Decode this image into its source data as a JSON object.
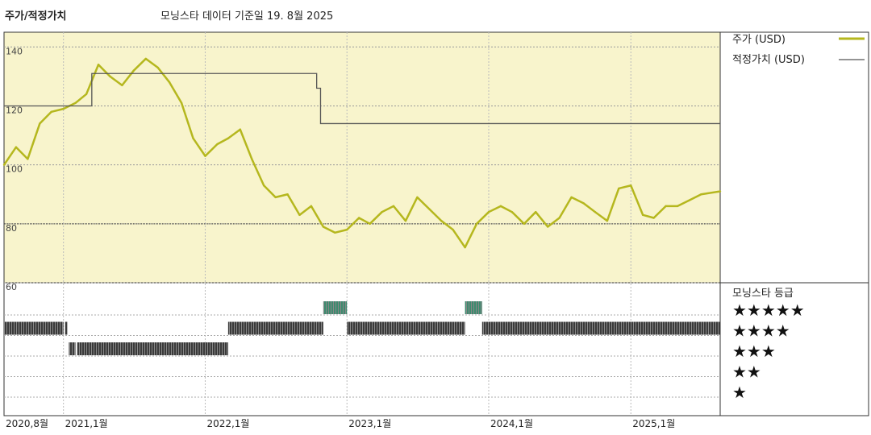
{
  "header": {
    "title": "주가/적정가치",
    "subtitle": "모닝스타 데이터 기준일 19. 8월 2025"
  },
  "colors": {
    "price_line": "#b5b71e",
    "fair_value_line": "#555555",
    "plot_background": "#f8f4cc",
    "rating_bar": "#3a3a3a",
    "rating_bar_highlight": "#3d8a6e"
  },
  "chart_data": {
    "type": "line",
    "y_axis": {
      "ylim": [
        60,
        145
      ],
      "ticks": [
        "140",
        "120",
        "100",
        "80",
        "60"
      ],
      "tick_values": [
        140,
        120,
        100,
        80,
        60
      ]
    },
    "x_axis": {
      "xlim": [
        "2020-08-01",
        "2025-08-19"
      ],
      "ticks": [
        {
          "label": "2020,8월",
          "date": "2020-08-01"
        },
        {
          "label": "2021,1월",
          "date": "2021-01-01"
        },
        {
          "label": "2022,1월",
          "date": "2022-01-01"
        },
        {
          "label": "2023,1월",
          "date": "2023-01-01"
        },
        {
          "label": "2024,1월",
          "date": "2024-01-01"
        },
        {
          "label": "2025,1월",
          "date": "2025-01-01"
        }
      ]
    },
    "legend": [
      {
        "label": "주가 (USD)",
        "series": "price"
      },
      {
        "label": "적정가치 (USD)",
        "series": "fair_value"
      }
    ],
    "series": [
      {
        "name": "주가 (USD)",
        "key": "price",
        "points": [
          [
            "2020-08-01",
            100
          ],
          [
            "2020-09-01",
            106
          ],
          [
            "2020-10-01",
            102
          ],
          [
            "2020-11-01",
            114
          ],
          [
            "2020-12-01",
            118
          ],
          [
            "2021-01-01",
            119
          ],
          [
            "2021-02-01",
            121
          ],
          [
            "2021-03-01",
            124
          ],
          [
            "2021-04-01",
            134
          ],
          [
            "2021-05-01",
            130
          ],
          [
            "2021-06-01",
            127
          ],
          [
            "2021-07-01",
            132
          ],
          [
            "2021-08-01",
            136
          ],
          [
            "2021-09-01",
            133
          ],
          [
            "2021-10-01",
            128
          ],
          [
            "2021-11-01",
            121
          ],
          [
            "2021-12-01",
            109
          ],
          [
            "2022-01-01",
            103
          ],
          [
            "2022-02-01",
            107
          ],
          [
            "2022-03-01",
            109
          ],
          [
            "2022-04-01",
            112
          ],
          [
            "2022-05-01",
            102
          ],
          [
            "2022-06-01",
            93
          ],
          [
            "2022-07-01",
            89
          ],
          [
            "2022-08-01",
            90
          ],
          [
            "2022-09-01",
            83
          ],
          [
            "2022-10-01",
            86
          ],
          [
            "2022-11-01",
            79
          ],
          [
            "2022-12-01",
            77
          ],
          [
            "2023-01-01",
            78
          ],
          [
            "2023-02-01",
            82
          ],
          [
            "2023-03-01",
            80
          ],
          [
            "2023-04-01",
            84
          ],
          [
            "2023-05-01",
            86
          ],
          [
            "2023-06-01",
            81
          ],
          [
            "2023-07-01",
            89
          ],
          [
            "2023-08-01",
            85
          ],
          [
            "2023-09-01",
            81
          ],
          [
            "2023-10-01",
            78
          ],
          [
            "2023-11-01",
            72
          ],
          [
            "2023-12-01",
            80
          ],
          [
            "2024-01-01",
            84
          ],
          [
            "2024-02-01",
            86
          ],
          [
            "2024-03-01",
            84
          ],
          [
            "2024-04-01",
            80
          ],
          [
            "2024-05-01",
            84
          ],
          [
            "2024-06-01",
            79
          ],
          [
            "2024-07-01",
            82
          ],
          [
            "2024-08-01",
            89
          ],
          [
            "2024-09-01",
            87
          ],
          [
            "2024-10-01",
            84
          ],
          [
            "2024-11-01",
            81
          ],
          [
            "2024-12-01",
            92
          ],
          [
            "2025-01-01",
            93
          ],
          [
            "2025-02-01",
            83
          ],
          [
            "2025-03-01",
            82
          ],
          [
            "2025-04-01",
            86
          ],
          [
            "2025-05-01",
            86
          ],
          [
            "2025-06-01",
            88
          ],
          [
            "2025-07-01",
            90
          ],
          [
            "2025-08-19",
            91
          ]
        ]
      },
      {
        "name": "적정가치 (USD)",
        "key": "fair_value",
        "steps": [
          [
            "2020-08-01",
            120
          ],
          [
            "2021-03-15",
            120
          ],
          [
            "2021-03-15",
            131
          ],
          [
            "2022-10-15",
            131
          ],
          [
            "2022-10-15",
            126
          ],
          [
            "2022-10-25",
            126
          ],
          [
            "2022-10-25",
            114
          ],
          [
            "2025-08-19",
            114
          ]
        ]
      }
    ],
    "rating_panel": {
      "title": "모닝스타 등급",
      "levels": [
        "★★★★★",
        "★★★★",
        "★★★",
        "★★",
        "★"
      ],
      "bars": [
        {
          "stars": 4,
          "start": "2020-08-01",
          "end": "2021-01-01"
        },
        {
          "stars": 4,
          "start": "2021-01-05",
          "end": "2021-01-10"
        },
        {
          "stars": 3,
          "start": "2021-01-15",
          "end": "2021-02-01"
        },
        {
          "stars": 3,
          "start": "2021-02-05",
          "end": "2022-03-01"
        },
        {
          "stars": 4,
          "start": "2022-03-01",
          "end": "2022-11-01"
        },
        {
          "stars": 5,
          "start": "2022-11-01",
          "end": "2023-01-01"
        },
        {
          "stars": 4,
          "start": "2023-01-01",
          "end": "2023-11-01"
        },
        {
          "stars": 5,
          "start": "2023-11-01",
          "end": "2023-12-15"
        },
        {
          "stars": 4,
          "start": "2023-12-15",
          "end": "2025-08-19"
        }
      ]
    }
  }
}
